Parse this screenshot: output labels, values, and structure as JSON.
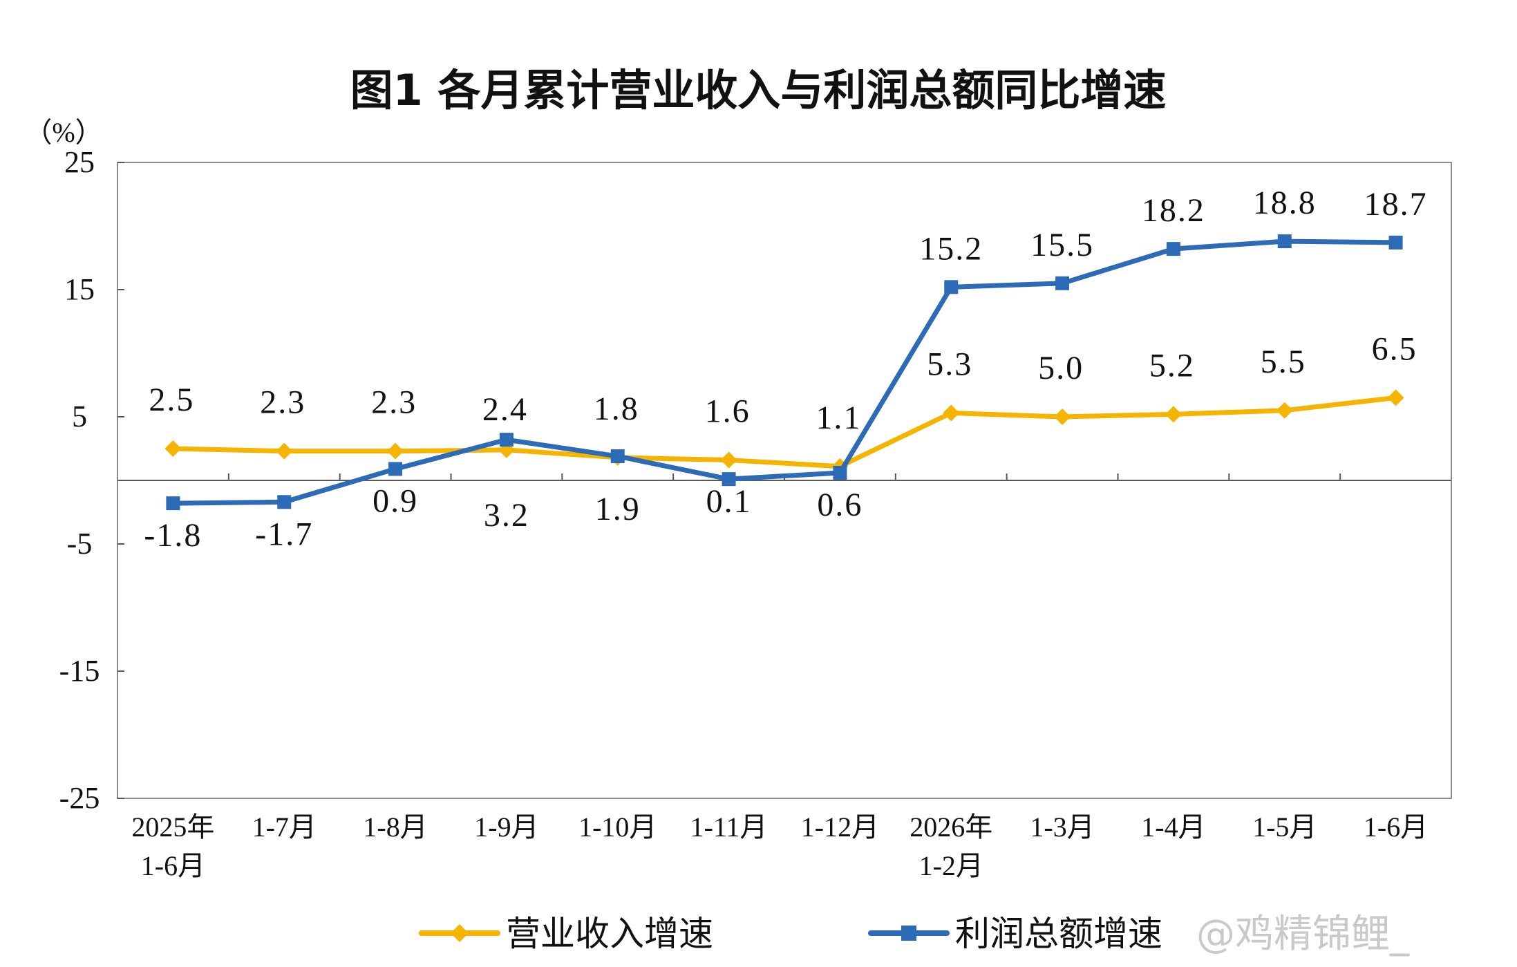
{
  "title": "图1  各月累计营业收入与利润总额同比增速",
  "watermark": "@鸡精锦鲤_",
  "colors": {
    "revenue": "#f5b400",
    "profit": "#2e6bb7",
    "axis": "#595959"
  },
  "chart_data": {
    "type": "line",
    "unit_label": "（%）",
    "ylim": [
      -25,
      25
    ],
    "yticks": [
      25,
      15,
      5,
      -5,
      -15,
      -25
    ],
    "categories": [
      [
        "2025年",
        "1-6月"
      ],
      [
        "1-7月"
      ],
      [
        "1-8月"
      ],
      [
        "1-9月"
      ],
      [
        "1-10月"
      ],
      [
        "1-11月"
      ],
      [
        "1-12月"
      ],
      [
        "2026年",
        "1-2月"
      ],
      [
        "1-3月"
      ],
      [
        "1-4月"
      ],
      [
        "1-5月"
      ],
      [
        "1-6月"
      ]
    ],
    "series": [
      {
        "name": "营业收入增速",
        "color": "#f5b400",
        "marker": "diamond",
        "values": [
          2.5,
          2.3,
          2.3,
          2.4,
          1.8,
          1.6,
          1.1,
          5.3,
          5.0,
          5.2,
          5.5,
          6.5
        ],
        "labels": [
          "2.5",
          "2.3",
          "2.3",
          "2.4",
          "1.8",
          "1.6",
          "1.1",
          "5.3",
          "5.0",
          "5.2",
          "5.5",
          "6.5"
        ]
      },
      {
        "name": "利润总额增速",
        "color": "#2e6bb7",
        "marker": "square",
        "values": [
          -1.8,
          -1.7,
          0.9,
          3.2,
          1.9,
          0.1,
          0.6,
          15.2,
          15.5,
          18.2,
          18.8,
          18.7
        ],
        "labels": [
          "-1.8",
          "-1.7",
          "0.9",
          "3.2",
          "1.9",
          "0.1",
          "0.6",
          "15.2",
          "15.5",
          "18.2",
          "18.8",
          "18.7"
        ]
      }
    ],
    "grid": false,
    "legend": "bottom"
  }
}
